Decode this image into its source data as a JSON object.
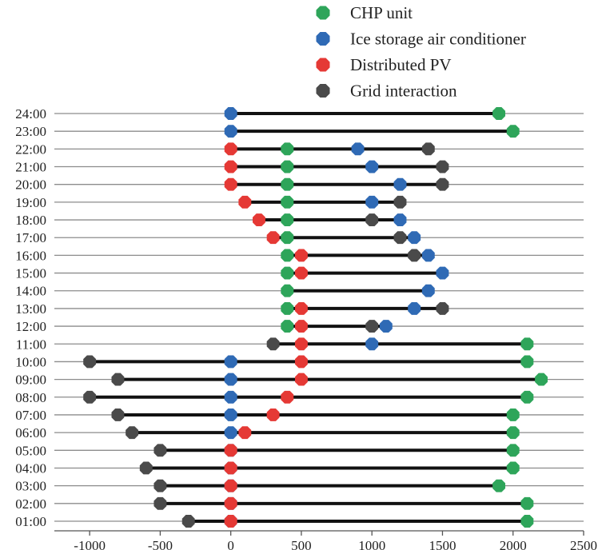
{
  "chart_data": {
    "type": "dumbbell",
    "title": "",
    "xlabel": "",
    "ylabel": "",
    "xlim": [
      -1250,
      2500
    ],
    "x_ticks": [
      -1000,
      -500,
      0,
      500,
      1000,
      1500,
      2000,
      2500
    ],
    "x_tick_labels": [
      "-1000",
      "-500",
      "0",
      "500",
      "1000",
      "1500",
      "2000",
      "2500"
    ],
    "legend_position": "top-right",
    "categories": [
      "01:00",
      "02:00",
      "03:00",
      "04:00",
      "05:00",
      "06:00",
      "07:00",
      "08:00",
      "09:00",
      "10:00",
      "11:00",
      "12:00",
      "13:00",
      "14:00",
      "15:00",
      "16:00",
      "17:00",
      "18:00",
      "19:00",
      "20:00",
      "21:00",
      "22:00",
      "23:00",
      "24:00"
    ],
    "series": [
      {
        "name": "CHP unit",
        "color": "#2ea55a",
        "values": [
          2100,
          2100,
          1900,
          2000,
          2000,
          2000,
          2000,
          2100,
          2200,
          2100,
          2100,
          400,
          400,
          400,
          400,
          400,
          400,
          400,
          400,
          400,
          400,
          400,
          2000,
          1900
        ]
      },
      {
        "name": "Ice storage air conditioner",
        "color": "#2f6ab5",
        "values": [
          0,
          0,
          0,
          0,
          0,
          0,
          0,
          0,
          0,
          0,
          1000,
          1100,
          1300,
          1400,
          1500,
          1400,
          1300,
          1200,
          1000,
          1200,
          1000,
          900,
          0,
          0
        ]
      },
      {
        "name": "Distributed PV",
        "color": "#e53935",
        "values": [
          0,
          0,
          0,
          0,
          0,
          100,
          300,
          400,
          500,
          500,
          500,
          500,
          500,
          null,
          500,
          500,
          300,
          200,
          100,
          0,
          0,
          0,
          null,
          null
        ]
      },
      {
        "name": "Grid interaction",
        "color": "#4a4a4a",
        "values": [
          -300,
          -500,
          -500,
          -600,
          -500,
          -700,
          -800,
          -1000,
          -800,
          -1000,
          300,
          1000,
          1500,
          null,
          null,
          1300,
          1200,
          1000,
          1200,
          1500,
          1500,
          1400,
          null,
          null
        ]
      }
    ]
  }
}
